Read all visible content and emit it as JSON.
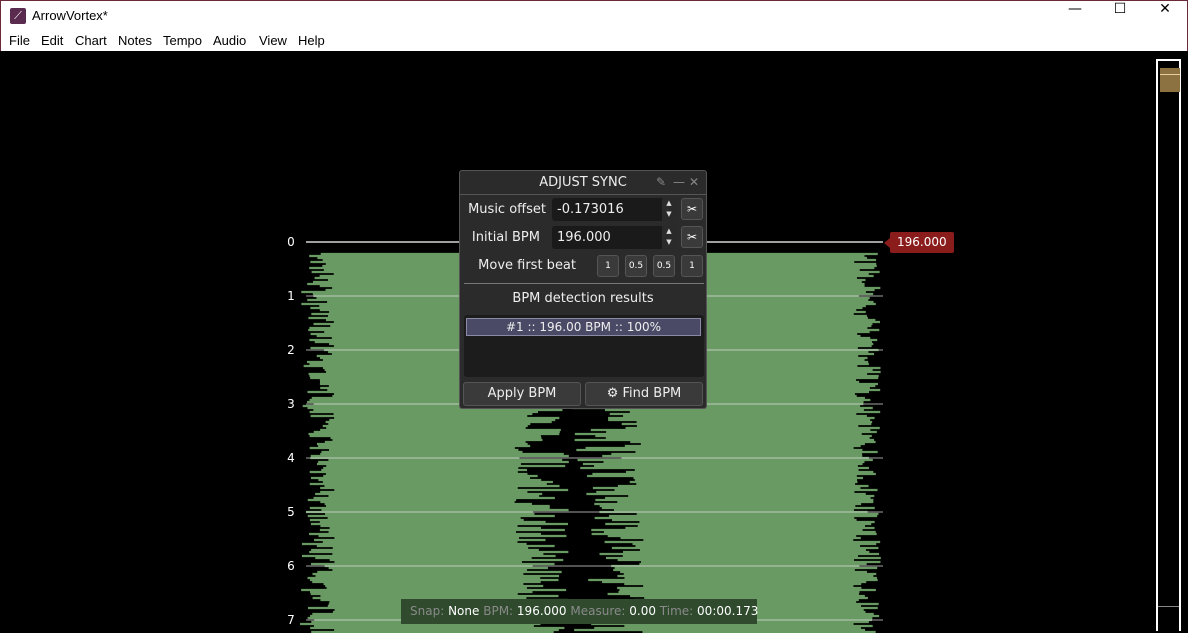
{
  "window": {
    "title": "ArrowVortex*",
    "minimize": "—",
    "maximize": "☐",
    "close": "✕"
  },
  "menu": [
    "File",
    "Edit",
    "Chart",
    "Notes",
    "Tempo",
    "Audio",
    "View",
    "Help"
  ],
  "measures": [
    "0",
    "1",
    "2",
    "3",
    "4",
    "5",
    "6",
    "7"
  ],
  "bpm_marker": "196.000",
  "status": {
    "snap_label": "Snap:",
    "snap": "None",
    "bpm_label": "BPM:",
    "bpm": "196.000",
    "measure_label": "Measure:",
    "measure": "0.00",
    "time_label": "Time:",
    "time": "00:00.173"
  },
  "dialog": {
    "title": "ADJUST SYNC",
    "music_offset_label": "Music offset",
    "music_offset": "-0.173016",
    "initial_bpm_label": "Initial BPM",
    "initial_bpm": "196.000",
    "move_first_beat_label": "Move first beat",
    "move_buttons": [
      "1",
      "0.5",
      "0.5",
      "1"
    ],
    "results_header": "BPM detection results",
    "results": [
      "#1 :: 196.00 BPM :: 100%"
    ],
    "apply_label": "Apply BPM",
    "find_label": "Find BPM"
  },
  "colors": {
    "waveform": "#6a9a64",
    "bpm_marker": "#8b1c1c",
    "scroll_thumb": "#8c7240"
  }
}
